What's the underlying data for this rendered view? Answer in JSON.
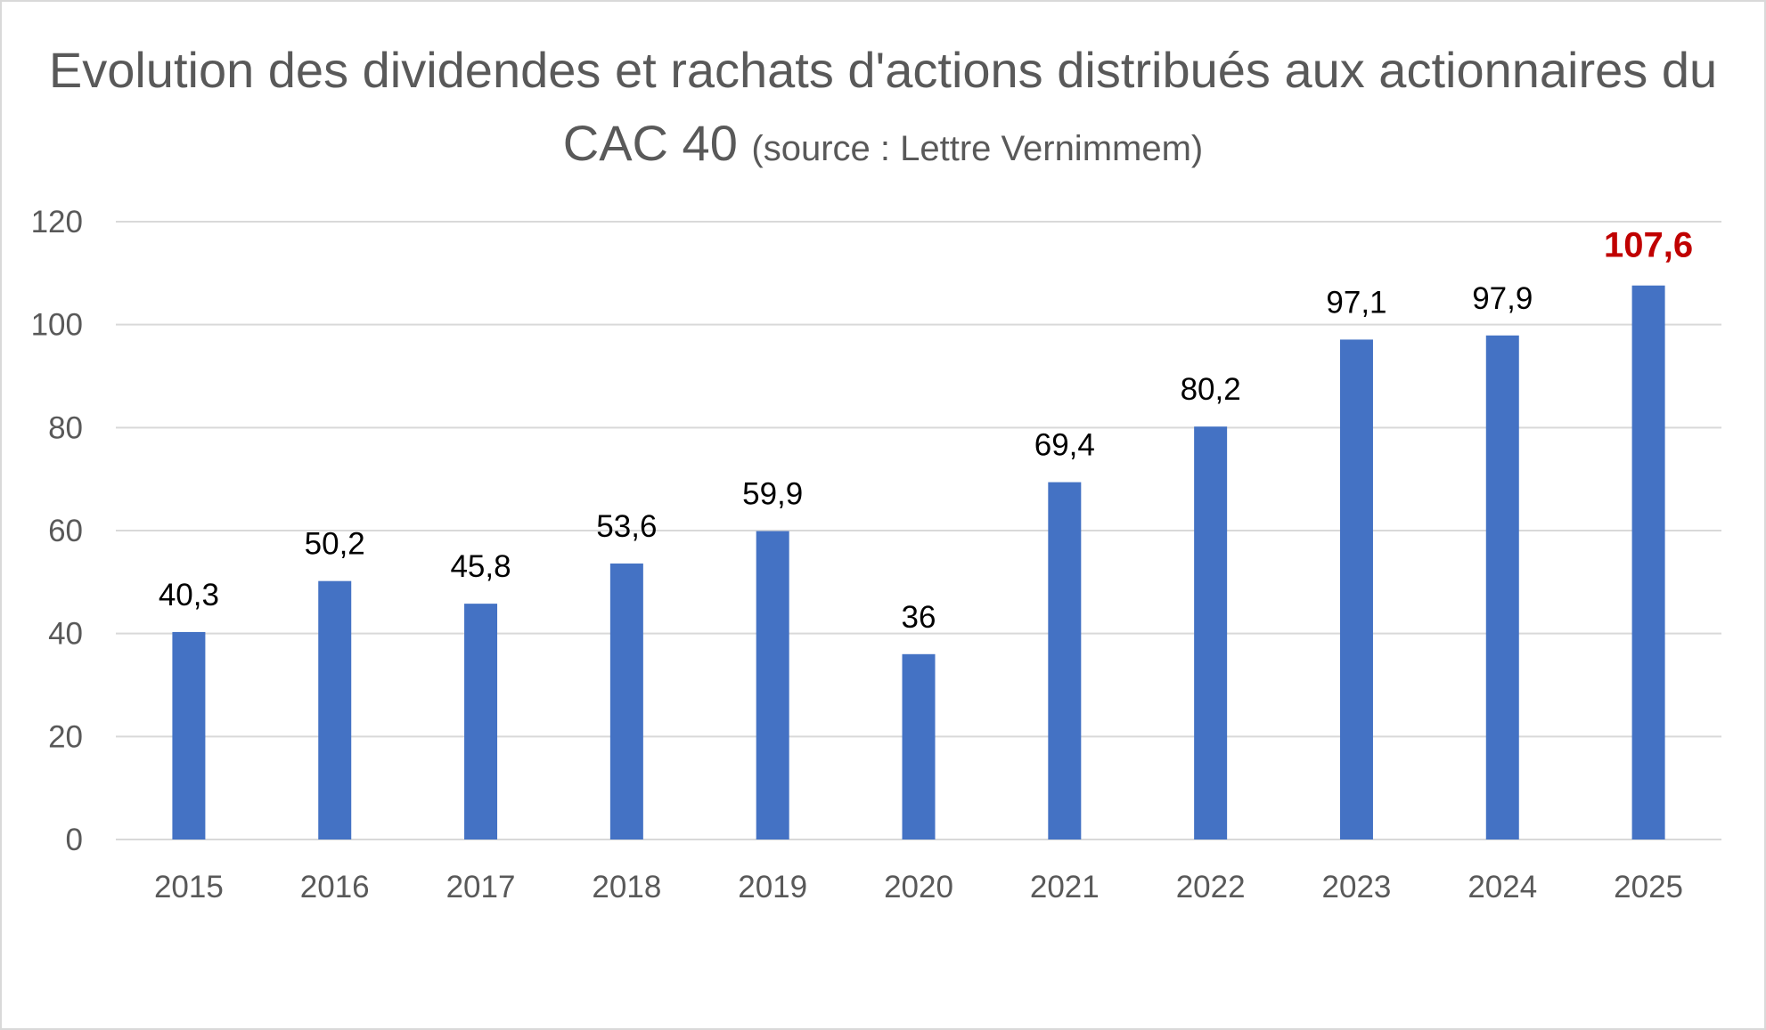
{
  "chart_data": {
    "type": "bar",
    "title": "Evolution des dividendes et rachats d'actions distribués aux actionnaires du CAC 40",
    "subtitle": "(source : Lettre Vernimmem)",
    "xlabel": "",
    "ylabel": "",
    "categories": [
      "2015",
      "2016",
      "2017",
      "2018",
      "2019",
      "2020",
      "2021",
      "2022",
      "2023",
      "2024",
      "2025"
    ],
    "values": [
      40.3,
      50.2,
      45.8,
      53.6,
      59.9,
      36,
      69.4,
      80.2,
      97.1,
      97.9,
      107.6
    ],
    "data_labels": [
      "40,3",
      "50,2",
      "45,8",
      "53,6",
      "59,9",
      "36",
      "69,4",
      "80,2",
      "97,1",
      "97,9",
      "107,6"
    ],
    "highlight_index": 10,
    "ylim": [
      0,
      120
    ],
    "yticks": [
      "0",
      "20",
      "40",
      "60",
      "80",
      "100",
      "120"
    ],
    "grid": true,
    "legend": "none",
    "colors": {
      "bar": "#4472c4",
      "grid": "#d9d9d9",
      "tick_text": "#595959",
      "label_text": "#000000",
      "highlight_label": "#c00000"
    }
  }
}
